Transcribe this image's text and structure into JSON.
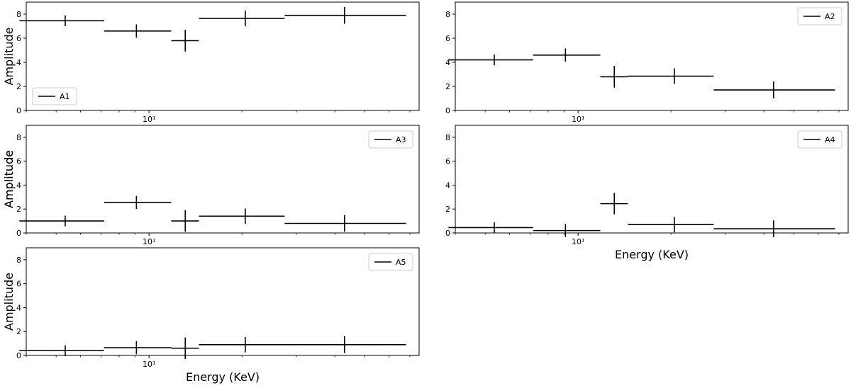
{
  "chart_data": [
    {
      "type": "errorbar",
      "ylabel": "Amplitude",
      "xlabel": "",
      "xscale": "log",
      "xlim": [
        4.0,
        75.0
      ],
      "ylim": [
        0,
        9
      ],
      "yticks": [
        0,
        2,
        4,
        6,
        8
      ],
      "xtick_label": "10¹",
      "legend": {
        "label": "A1",
        "placement": "lower-left"
      },
      "color": "#000000",
      "points": [
        {
          "x": 5.35,
          "xlo": 3.8,
          "xhi": 7.15,
          "y": 7.45,
          "yerr": 0.45
        },
        {
          "x": 9.1,
          "xlo": 7.15,
          "xhi": 11.8,
          "y": 6.6,
          "yerr": 0.55
        },
        {
          "x": 13.1,
          "xlo": 11.8,
          "xhi": 14.5,
          "y": 5.8,
          "yerr": 0.9
        },
        {
          "x": 20.5,
          "xlo": 14.5,
          "xhi": 27.5,
          "y": 7.65,
          "yerr": 0.65
        },
        {
          "x": 43.0,
          "xlo": 27.5,
          "xhi": 68.0,
          "y": 7.9,
          "yerr": 0.7
        }
      ]
    },
    {
      "type": "errorbar",
      "ylabel": "",
      "xlabel": "",
      "xscale": "log",
      "xlim": [
        4.0,
        75.0
      ],
      "ylim": [
        0,
        9
      ],
      "yticks": [
        0,
        2,
        4,
        6,
        8
      ],
      "xtick_label": "10¹",
      "legend": {
        "label": "A2",
        "placement": "upper-right"
      },
      "color": "#000000",
      "points": [
        {
          "x": 5.35,
          "xlo": 3.8,
          "xhi": 7.15,
          "y": 4.2,
          "yerr": 0.45
        },
        {
          "x": 9.1,
          "xlo": 7.15,
          "xhi": 11.8,
          "y": 4.6,
          "yerr": 0.55
        },
        {
          "x": 13.1,
          "xlo": 11.8,
          "xhi": 14.5,
          "y": 2.8,
          "yerr": 0.9
        },
        {
          "x": 20.5,
          "xlo": 14.5,
          "xhi": 27.5,
          "y": 2.85,
          "yerr": 0.65
        },
        {
          "x": 43.0,
          "xlo": 27.5,
          "xhi": 68.0,
          "y": 1.7,
          "yerr": 0.7
        }
      ]
    },
    {
      "type": "errorbar",
      "ylabel": "Amplitude",
      "xlabel": "",
      "xscale": "log",
      "xlim": [
        4.0,
        75.0
      ],
      "ylim": [
        0,
        9
      ],
      "yticks": [
        0,
        2,
        4,
        6,
        8
      ],
      "xtick_label": "10¹",
      "legend": {
        "label": "A3",
        "placement": "upper-right"
      },
      "color": "#000000",
      "points": [
        {
          "x": 5.35,
          "xlo": 3.8,
          "xhi": 7.15,
          "y": 1.0,
          "yerr": 0.45
        },
        {
          "x": 9.1,
          "xlo": 7.15,
          "xhi": 11.8,
          "y": 2.55,
          "yerr": 0.55
        },
        {
          "x": 13.1,
          "xlo": 11.8,
          "xhi": 14.5,
          "y": 1.0,
          "yerr": 0.9
        },
        {
          "x": 20.5,
          "xlo": 14.5,
          "xhi": 27.5,
          "y": 1.4,
          "yerr": 0.65
        },
        {
          "x": 43.0,
          "xlo": 27.5,
          "xhi": 68.0,
          "y": 0.8,
          "yerr": 0.7
        }
      ]
    },
    {
      "type": "errorbar",
      "ylabel": "Amplitude",
      "xlabel": "Energy (KeV)",
      "xscale": "log",
      "xlim": [
        4.0,
        75.0
      ],
      "ylim": [
        0,
        9
      ],
      "yticks": [
        0,
        2,
        4,
        6,
        8
      ],
      "xtick_label": "10¹",
      "legend": {
        "label": "A4",
        "placement": "upper-right"
      },
      "color": "#000000",
      "points": [
        {
          "x": 5.35,
          "xlo": 3.8,
          "xhi": 7.15,
          "y": 0.45,
          "yerr": 0.45
        },
        {
          "x": 9.1,
          "xlo": 7.15,
          "xhi": 11.8,
          "y": 0.2,
          "yerr": 0.55
        },
        {
          "x": 13.1,
          "xlo": 11.8,
          "xhi": 14.5,
          "y": 2.45,
          "yerr": 0.9
        },
        {
          "x": 20.5,
          "xlo": 14.5,
          "xhi": 27.5,
          "y": 0.7,
          "yerr": 0.65
        },
        {
          "x": 43.0,
          "xlo": 27.5,
          "xhi": 68.0,
          "y": 0.35,
          "yerr": 0.7
        }
      ]
    },
    {
      "type": "errorbar",
      "ylabel": "Amplitude",
      "xlabel": "Energy (KeV)",
      "xscale": "log",
      "xlim": [
        4.0,
        75.0
      ],
      "ylim": [
        0,
        9
      ],
      "yticks": [
        0,
        2,
        4,
        6,
        8
      ],
      "xtick_label": "10¹",
      "legend": {
        "label": "A5",
        "placement": "upper-right"
      },
      "color": "#000000",
      "points": [
        {
          "x": 5.35,
          "xlo": 3.8,
          "xhi": 7.15,
          "y": 0.4,
          "yerr": 0.45
        },
        {
          "x": 9.1,
          "xlo": 7.15,
          "xhi": 11.8,
          "y": 0.65,
          "yerr": 0.55
        },
        {
          "x": 13.1,
          "xlo": 11.8,
          "xhi": 14.5,
          "y": 0.6,
          "yerr": 0.9
        },
        {
          "x": 20.5,
          "xlo": 14.5,
          "xhi": 27.5,
          "y": 0.9,
          "yerr": 0.65
        },
        {
          "x": 43.0,
          "xlo": 27.5,
          "xhi": 68.0,
          "y": 0.9,
          "yerr": 0.7
        }
      ]
    }
  ]
}
